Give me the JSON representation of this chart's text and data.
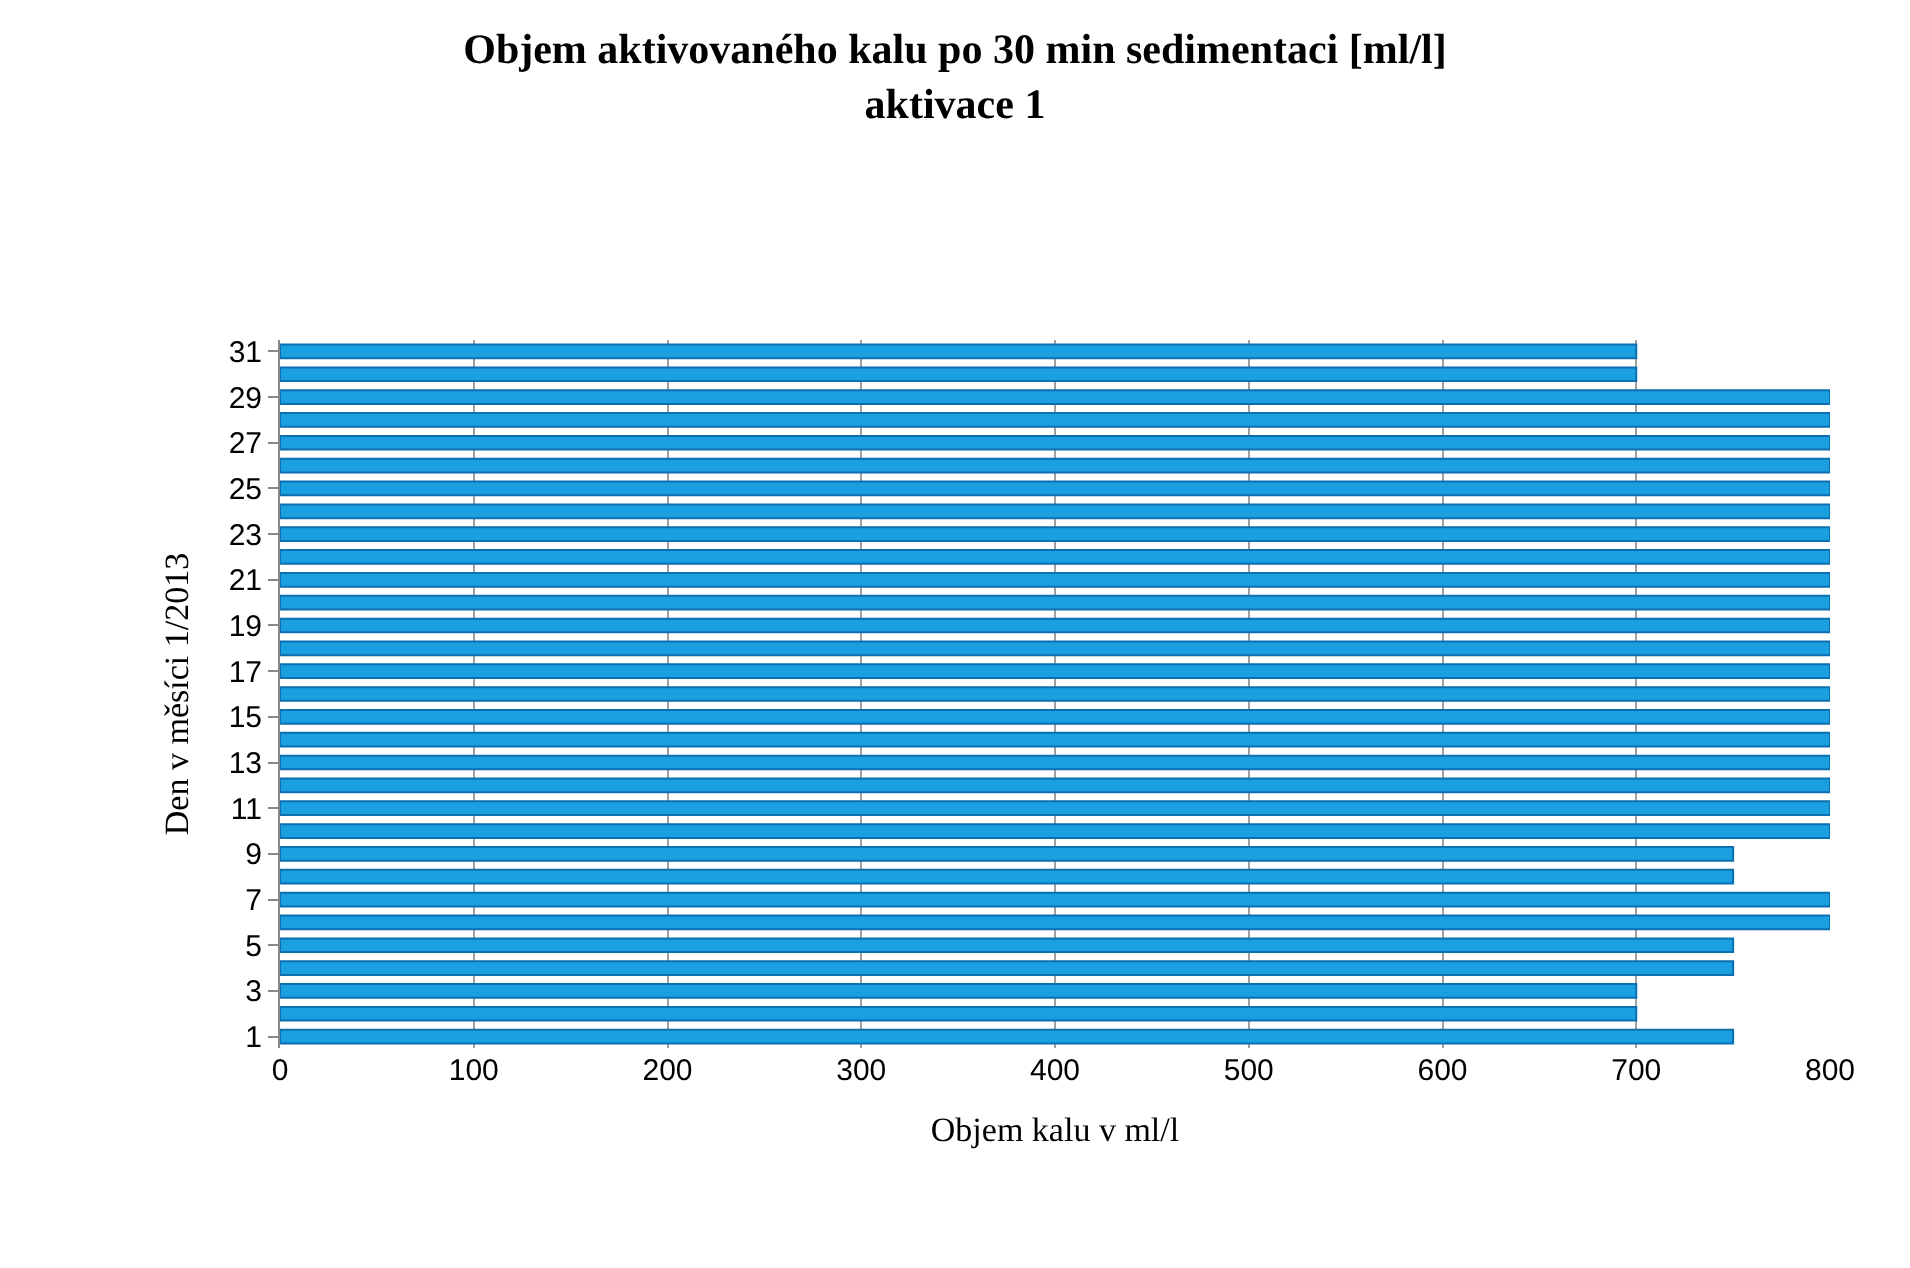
{
  "chart_data": {
    "type": "bar",
    "orientation": "horizontal",
    "title": "Objem aktivovaného kalu po 30 min sedimentaci [ml/l]\naktivace 1",
    "xlabel": "Objem kalu v ml/l",
    "ylabel": "Den v měsíci 1/2013",
    "categories": [
      "31",
      null,
      "29",
      null,
      "27",
      null,
      "25",
      null,
      "23",
      null,
      "21",
      null,
      "19",
      null,
      "17",
      null,
      "15",
      null,
      "13",
      null,
      "11",
      null,
      "9",
      null,
      "7",
      null,
      "5",
      null,
      "3",
      null,
      "1"
    ],
    "values": [
      700,
      700,
      800,
      800,
      800,
      800,
      800,
      800,
      800,
      800,
      800,
      800,
      800,
      800,
      800,
      800,
      800,
      800,
      800,
      800,
      800,
      800,
      750,
      750,
      800,
      800,
      750,
      750,
      700,
      700,
      750
    ],
    "color": "#1a9fe0",
    "xlim": [
      0,
      800
    ],
    "xticks": [
      0,
      100,
      200,
      300,
      400,
      500,
      600,
      700,
      800
    ],
    "grid": "x",
    "legend": false
  }
}
